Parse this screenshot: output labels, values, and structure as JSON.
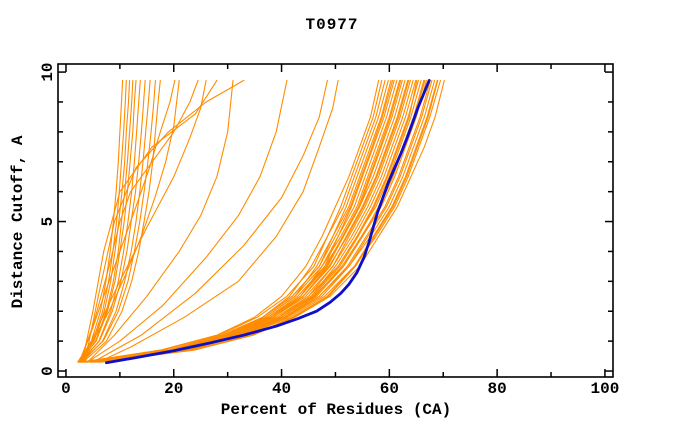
{
  "chart_data": {
    "type": "line",
    "title": "T0977",
    "xlabel": "Percent of Residues (CA)",
    "ylabel": "Distance Cutoff, A",
    "xlim": [
      -1.48,
      101.5
    ],
    "ylim": [
      -0.2,
      10.27
    ],
    "grid": false,
    "legend": "none",
    "x_ticks_major": {
      "values": [
        0,
        20,
        40,
        60,
        80,
        100
      ],
      "labels": [
        "0",
        "20",
        "40",
        "60",
        "80",
        "100"
      ]
    },
    "x_ticks_minor": [
      10,
      30,
      50,
      70,
      90
    ],
    "y_ticks_major": {
      "values": [
        0,
        5,
        10
      ],
      "labels": [
        "0",
        "5",
        "10"
      ]
    },
    "y_ticks_minor": [
      1,
      2,
      3,
      4,
      6,
      7,
      8,
      9
    ],
    "colors": {
      "model_line": "#ff8c00",
      "highlight_line": "#0f0fc8",
      "axis": "#000000",
      "background": "#ffffff"
    },
    "highlight_series": {
      "description": "thick navy curve inside main bundle",
      "points": [
        [
          7.5,
          0.28
        ],
        [
          13,
          0.45
        ],
        [
          20,
          0.68
        ],
        [
          27,
          0.95
        ],
        [
          33,
          1.2
        ],
        [
          39,
          1.5
        ],
        [
          43,
          1.75
        ],
        [
          46.5,
          2.0
        ],
        [
          49,
          2.3
        ],
        [
          51,
          2.6
        ],
        [
          52.5,
          2.9
        ],
        [
          54,
          3.3
        ],
        [
          55.3,
          3.8
        ],
        [
          56.2,
          4.3
        ],
        [
          57,
          4.8
        ],
        [
          57.8,
          5.3
        ],
        [
          58.8,
          5.8
        ],
        [
          59.8,
          6.3
        ],
        [
          61,
          6.8
        ],
        [
          62.2,
          7.3
        ],
        [
          63.3,
          7.8
        ],
        [
          64.3,
          8.3
        ],
        [
          65.3,
          8.8
        ],
        [
          66.2,
          9.2
        ],
        [
          67,
          9.55
        ],
        [
          67.4,
          9.72
        ]
      ]
    },
    "y_levels_main_bundle": [
      0.3,
      0.7,
      1.2,
      1.8,
      2.5,
      3.5,
      4.5,
      5.5,
      6.5,
      7.5,
      8.5,
      9.72
    ],
    "main_bundle_x": [
      [
        3,
        17.5,
        28,
        35,
        40,
        44.5,
        47.5,
        50,
        52.5,
        54.5,
        56.5,
        58
      ],
      [
        4,
        19,
        29.5,
        36.5,
        41.5,
        45.5,
        48.5,
        51,
        53,
        55,
        57,
        58.6
      ],
      [
        2.8,
        18,
        28.5,
        35.5,
        41,
        46,
        48.5,
        51.5,
        53.5,
        55.5,
        57.5,
        59.2
      ],
      [
        5,
        20.5,
        30,
        37,
        42.5,
        46.5,
        49.5,
        52,
        54,
        56,
        58,
        59.8
      ],
      [
        3.5,
        19.5,
        29.5,
        36.5,
        42,
        47,
        49.5,
        52.5,
        54.5,
        56.5,
        58.5,
        60.3
      ],
      [
        6,
        21,
        31,
        38,
        43.5,
        47.5,
        50.5,
        53,
        55,
        57,
        59,
        60.9
      ],
      [
        4.5,
        20,
        30.5,
        37.5,
        43,
        48,
        50.5,
        53.5,
        55.5,
        57.5,
        59.5,
        61.4
      ],
      [
        3,
        19,
        29.5,
        37,
        42.5,
        47.5,
        51,
        54,
        56,
        58,
        60,
        61.9
      ],
      [
        5.5,
        21.5,
        31.5,
        38.5,
        44,
        48.5,
        51.5,
        54.5,
        56.5,
        58.5,
        60.5,
        62.4
      ],
      [
        2.6,
        19.5,
        30,
        37.5,
        43.5,
        48,
        51.5,
        54.5,
        57,
        59,
        61,
        62.9
      ],
      [
        4,
        20.5,
        31,
        38.5,
        44,
        49,
        52,
        55,
        57.5,
        59.5,
        61.5,
        63.4
      ],
      [
        6.5,
        22.5,
        32.5,
        39.5,
        45,
        49.5,
        52.5,
        55.5,
        58,
        60,
        62,
        63.9
      ],
      [
        3.2,
        20,
        30.5,
        38.5,
        44.5,
        49.5,
        53,
        56,
        58.5,
        60.5,
        62.5,
        64.4
      ],
      [
        5,
        21.5,
        32,
        39.5,
        45.5,
        50,
        53.5,
        56.5,
        59,
        61,
        63,
        64.9
      ],
      [
        4.2,
        21,
        31.5,
        39.5,
        45.5,
        50.5,
        54,
        57,
        59.5,
        61.5,
        63.5,
        65.4
      ],
      [
        2.9,
        20,
        31,
        39,
        45,
        50.5,
        54,
        57.5,
        60,
        62,
        64,
        65.9
      ],
      [
        5.8,
        22.5,
        33,
        40.5,
        46.5,
        51.5,
        55,
        58,
        60.5,
        62.5,
        64.5,
        66.4
      ],
      [
        3.6,
        21,
        32,
        40,
        46,
        51.5,
        55,
        58.5,
        61,
        63,
        65,
        66.9
      ],
      [
        4.8,
        22,
        33,
        41,
        47.5,
        52.5,
        56,
        59.5,
        62,
        64,
        66,
        67.9
      ],
      [
        3,
        21,
        32.5,
        40.5,
        47,
        52.5,
        56.5,
        60,
        62.5,
        64.5,
        66.5,
        68.4
      ],
      [
        6,
        23.5,
        34.5,
        42,
        48.5,
        53.5,
        57,
        60.5,
        63,
        65,
        67,
        68.9
      ],
      [
        4,
        22,
        33.5,
        41.5,
        48,
        53.5,
        57.5,
        61,
        63.5,
        65.5,
        67.5,
        69.5
      ],
      [
        5.2,
        23,
        34.5,
        42.5,
        49,
        54.5,
        58,
        61.5,
        64,
        66.5,
        68.5,
        70.2
      ],
      [
        3.4,
        19,
        29,
        36.5,
        42,
        47,
        50,
        52.8,
        54.8,
        56.8,
        58.7,
        60.6
      ],
      [
        4.6,
        20.5,
        30.5,
        38,
        43.5,
        48.3,
        51.3,
        54.3,
        56.3,
        58.3,
        60.2,
        62.1
      ],
      [
        2.7,
        19.8,
        30.2,
        38,
        44,
        48.8,
        52.2,
        55.2,
        57.7,
        59.7,
        61.7,
        63.6
      ],
      [
        5.4,
        21.8,
        32.2,
        40,
        45.8,
        50.8,
        54.2,
        57.2,
        59.7,
        61.7,
        63.7,
        65.1
      ],
      [
        3.8,
        21.2,
        32,
        40,
        46.2,
        51.2,
        54.8,
        58.2,
        60.7,
        62.7,
        64.7,
        66.6
      ],
      [
        4.4,
        21.8,
        32.8,
        40.8,
        47,
        52.2,
        55.7,
        59.2,
        61.7,
        63.7,
        65.7,
        67.6
      ],
      [
        6.2,
        23.8,
        34.8,
        42.3,
        48.7,
        53.7,
        57.2,
        60.7,
        63.2,
        65.2,
        67.2,
        69
      ]
    ],
    "y_levels_left_bundle": [
      0.3,
      1,
      2,
      3,
      4,
      5,
      6,
      7,
      8,
      9,
      9.72
    ],
    "left_bundle_x": [
      [
        2.2,
        4.7,
        6.4,
        7.4,
        8.2,
        8.8,
        9.3,
        9.7,
        10,
        10.3,
        10.5
      ],
      [
        2.4,
        5,
        6.8,
        7.9,
        8.7,
        9.4,
        9.9,
        10.3,
        10.7,
        11,
        11.2
      ],
      [
        2.3,
        5.2,
        7.1,
        8.3,
        9.1,
        9.8,
        10.4,
        10.9,
        11.2,
        11.6,
        11.8
      ],
      [
        2.6,
        5.5,
        7.5,
        8.8,
        9.7,
        10.3,
        10.9,
        11.4,
        11.8,
        12.2,
        12.4
      ],
      [
        2.4,
        5.6,
        7.7,
        9.1,
        10,
        10.8,
        11.4,
        11.9,
        12.4,
        12.7,
        13
      ],
      [
        2.8,
        6.1,
        8.3,
        9.7,
        10.7,
        11.5,
        12.2,
        12.7,
        13.1,
        13.5,
        13.8
      ],
      [
        2.5,
        6.2,
        8.6,
        10.2,
        11.3,
        12.1,
        12.9,
        13.5,
        14,
        14.4,
        14.7
      ],
      [
        3,
        6.8,
        9.3,
        10.9,
        12.1,
        13,
        13.7,
        14.3,
        14.8,
        15.3,
        15.6
      ],
      [
        2.7,
        6.9,
        9.7,
        11.5,
        12.7,
        13.7,
        14.5,
        15.2,
        15.8,
        16.3,
        16.6
      ],
      [
        3.2,
        7.5,
        10.4,
        12.2,
        13.5,
        14.5,
        15.4,
        16.1,
        16.6,
        17.1,
        17.5
      ]
    ],
    "scattered_series": [
      [
        [
          2.5,
          0.3
        ],
        [
          5,
          1
        ],
        [
          8,
          2
        ],
        [
          11,
          3.2
        ],
        [
          14,
          4.5
        ],
        [
          16.5,
          5.8
        ],
        [
          18.5,
          7
        ],
        [
          20,
          8.2
        ],
        [
          21,
          9.72
        ]
      ],
      [
        [
          2.5,
          0.3
        ],
        [
          4.5,
          1.2
        ],
        [
          7,
          2.5
        ],
        [
          10,
          4
        ],
        [
          13,
          5.5
        ],
        [
          15.5,
          6.8
        ],
        [
          17.5,
          8
        ],
        [
          19.3,
          9
        ],
        [
          20.2,
          9.72
        ]
      ],
      [
        [
          3,
          0.3
        ],
        [
          6,
          1.5
        ],
        [
          10,
          3
        ],
        [
          15,
          4.8
        ],
        [
          20,
          6.5
        ],
        [
          23,
          7.8
        ],
        [
          25,
          8.8
        ],
        [
          26,
          9.72
        ]
      ],
      [
        [
          4,
          0.3
        ],
        [
          9,
          1.2
        ],
        [
          15,
          2.5
        ],
        [
          21,
          4
        ],
        [
          25,
          5.2
        ],
        [
          28,
          6.5
        ],
        [
          30,
          8
        ],
        [
          31,
          9.72
        ]
      ],
      [
        [
          4,
          0.3
        ],
        [
          10,
          1
        ],
        [
          18,
          2.2
        ],
        [
          26,
          3.8
        ],
        [
          32,
          5.2
        ],
        [
          36,
          6.5
        ],
        [
          39,
          8
        ],
        [
          41,
          9.72
        ]
      ],
      [
        [
          5,
          0.3
        ],
        [
          14,
          1.2
        ],
        [
          24,
          2.6
        ],
        [
          33,
          4.2
        ],
        [
          40,
          5.8
        ],
        [
          44,
          7.2
        ],
        [
          47,
          8.5
        ],
        [
          48.5,
          9.72
        ]
      ],
      [
        [
          6,
          0.3
        ],
        [
          12,
          0.8
        ],
        [
          22,
          1.8
        ],
        [
          32,
          3
        ],
        [
          39,
          4.5
        ],
        [
          44,
          6
        ],
        [
          47,
          7.5
        ],
        [
          49.5,
          8.8
        ],
        [
          50.5,
          9.72
        ]
      ],
      [
        [
          3,
          0.3
        ],
        [
          5,
          2
        ],
        [
          7,
          4
        ],
        [
          10,
          6
        ],
        [
          16,
          7.5
        ],
        [
          24,
          8.6
        ],
        [
          28,
          9.72
        ]
      ],
      [
        [
          3.5,
          0.3
        ],
        [
          6,
          2.5
        ],
        [
          9,
          5
        ],
        [
          13,
          6.8
        ],
        [
          19,
          8
        ],
        [
          26,
          9
        ],
        [
          33,
          9.72
        ]
      ],
      [
        [
          2.5,
          0.3
        ],
        [
          5,
          1.5
        ],
        [
          8,
          3.5
        ],
        [
          10,
          5
        ],
        [
          12,
          6
        ],
        [
          16,
          7
        ],
        [
          20,
          8
        ],
        [
          23,
          9
        ],
        [
          24.5,
          9.72
        ]
      ]
    ]
  }
}
